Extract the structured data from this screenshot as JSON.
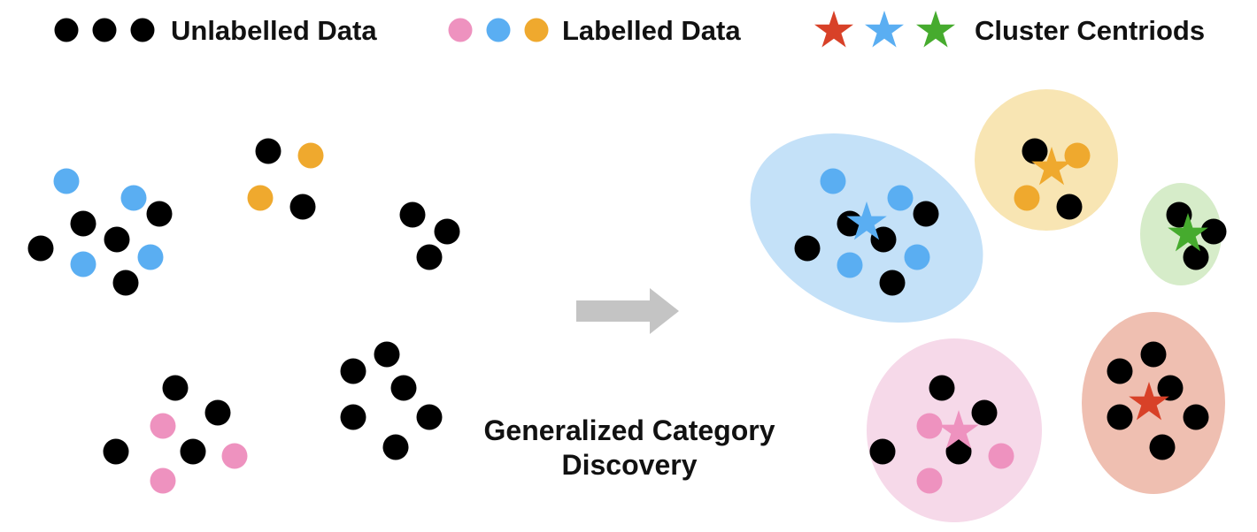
{
  "legend": {
    "unlabelled_label": "Unlabelled Data",
    "labelled_label": "Labelled Data",
    "centroids_label": "Cluster Centriods"
  },
  "caption": {
    "line1": "Generalized Category",
    "line2": "Discovery"
  },
  "colors": {
    "unlabelled": "#000000",
    "pink": "#ee92bf",
    "blue": "#5aaef2",
    "orange": "#efa92e",
    "red": "#d84128",
    "green": "#46ab2e",
    "arrow": "#c4c4c4",
    "cluster_blue_fill": "#c4e1f8",
    "cluster_orange_fill": "#f8e5b3",
    "cluster_green_fill": "#d6ecc9",
    "cluster_pink_fill": "#f6d9e9",
    "cluster_red_fill": "#efbfb1"
  },
  "legend_markers": {
    "unlabelled": [
      "unlabelled",
      "unlabelled",
      "unlabelled"
    ],
    "labelled": [
      "pink",
      "blue",
      "orange"
    ],
    "centroids": [
      "red",
      "blue",
      "green"
    ]
  },
  "clusters": [
    "blue",
    "orange",
    "green",
    "pink",
    "red"
  ]
}
